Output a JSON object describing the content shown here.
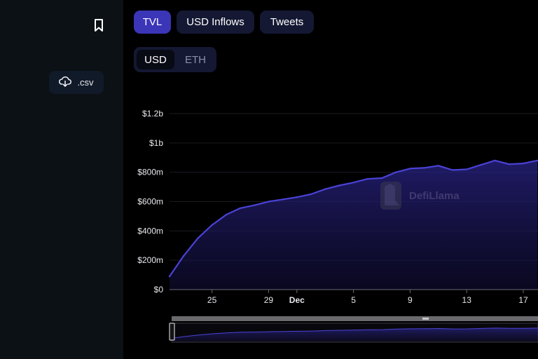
{
  "sidebar": {
    "csv_label": ".csv"
  },
  "tabs": [
    {
      "label": "TVL",
      "active": true
    },
    {
      "label": "USD Inflows",
      "active": false
    },
    {
      "label": "Tweets",
      "active": false
    }
  ],
  "currency_toggle": {
    "options": [
      "USD",
      "ETH"
    ],
    "selected": "USD"
  },
  "watermark": "DefiLlama",
  "colors": {
    "accent": "#3b35b8",
    "line": "#4a42d6",
    "area": "#1c1860",
    "sidebar": "#0b1114"
  },
  "chart_data": {
    "type": "area",
    "title": "",
    "xlabel": "",
    "ylabel": "",
    "x_ticks": [
      "25",
      "29",
      "Dec",
      "5",
      "9",
      "13",
      "17"
    ],
    "y_ticks": [
      "$0",
      "$200m",
      "$400m",
      "$600m",
      "$800m",
      "$1b",
      "$1.2b"
    ],
    "ylim": [
      0,
      1200
    ],
    "y_unit": "USD millions",
    "grid": true,
    "x": [
      "Nov 22",
      "Nov 23",
      "Nov 24",
      "Nov 25",
      "Nov 26",
      "Nov 27",
      "Nov 28",
      "Nov 29",
      "Nov 30",
      "Dec 1",
      "Dec 2",
      "Dec 3",
      "Dec 4",
      "Dec 5",
      "Dec 6",
      "Dec 7",
      "Dec 8",
      "Dec 9",
      "Dec 10",
      "Dec 11",
      "Dec 12",
      "Dec 13",
      "Dec 14",
      "Dec 15",
      "Dec 16",
      "Dec 17",
      "Dec 18"
    ],
    "values": [
      90,
      230,
      350,
      440,
      510,
      555,
      575,
      600,
      615,
      630,
      650,
      685,
      710,
      730,
      755,
      760,
      800,
      825,
      830,
      845,
      815,
      820,
      850,
      880,
      855,
      860,
      880
    ],
    "series": [
      {
        "values": [
          90,
          230,
          350,
          440,
          510,
          555,
          575,
          600,
          615,
          630,
          650,
          685,
          710,
          730,
          755,
          760,
          800,
          825,
          830,
          845,
          815,
          820,
          850,
          880,
          855,
          860,
          880
        ]
      }
    ]
  }
}
